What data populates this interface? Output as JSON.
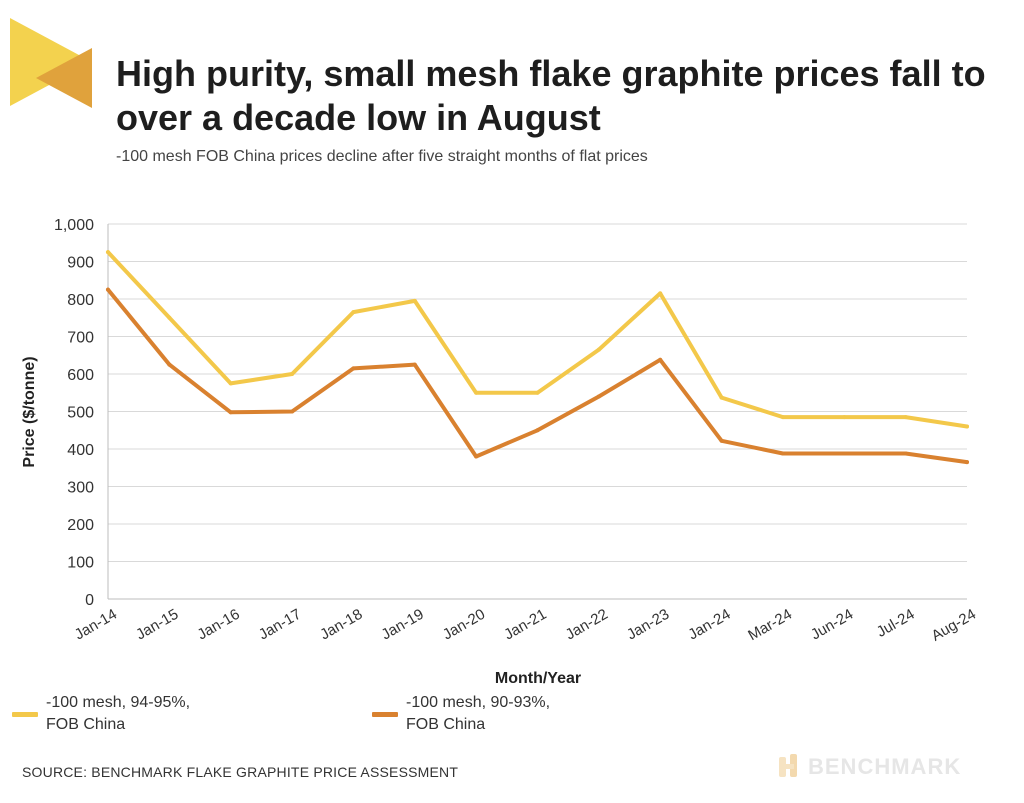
{
  "header": {
    "title": "High purity, small mesh flake graphite prices fall to over a decade low in August",
    "subtitle": "-100 mesh FOB China prices decline after five straight months of flat prices"
  },
  "colors": {
    "series1": "#F3C84A",
    "series2": "#D9812F",
    "grid": "#d9d9d9",
    "logo_light": "#F3D24E",
    "logo_dark": "#E0A23C"
  },
  "chart_data": {
    "type": "line",
    "title": "High purity, small mesh flake graphite prices fall to over a decade low in August",
    "subtitle": "-100 mesh FOB China prices decline after five straight months of flat prices",
    "xlabel": "Month/Year",
    "ylabel": "Price ($/tonne)",
    "ylim": [
      0,
      1000
    ],
    "yticks": [
      0,
      100,
      200,
      300,
      400,
      500,
      600,
      700,
      800,
      900,
      1000
    ],
    "ytick_labels": [
      "0",
      "100",
      "200",
      "300",
      "400",
      "500",
      "600",
      "700",
      "800",
      "900",
      "1,000"
    ],
    "categories": [
      "Jan-14",
      "Jan-15",
      "Jan-16",
      "Jan-17",
      "Jan-18",
      "Jan-19",
      "Jan-20",
      "Jan-21",
      "Jan-22",
      "Jan-23",
      "Jan-24",
      "Mar-24",
      "Jun-24",
      "Jul-24",
      "Aug-24"
    ],
    "grid": true,
    "legend_position": "bottom",
    "series": [
      {
        "name": "-100 mesh, 94-95%, FOB China",
        "values": [
          925,
          750,
          575,
          600,
          765,
          795,
          550,
          550,
          665,
          815,
          537,
          485,
          485,
          485,
          460
        ]
      },
      {
        "name": "-100 mesh, 90-93%, FOB China",
        "values": [
          825,
          625,
          498,
          500,
          615,
          625,
          380,
          450,
          540,
          638,
          422,
          388,
          388,
          388,
          365
        ]
      }
    ]
  },
  "legend": {
    "series1_line1": "-100 mesh, 94-95%,",
    "series1_line2": "FOB China",
    "series2_line1": "-100 mesh, 90-93%,",
    "series2_line2": "FOB China"
  },
  "footer": {
    "source": "SOURCE: BENCHMARK FLAKE GRAPHITE PRICE ASSESSMENT",
    "brand": "BENCHMARK"
  }
}
